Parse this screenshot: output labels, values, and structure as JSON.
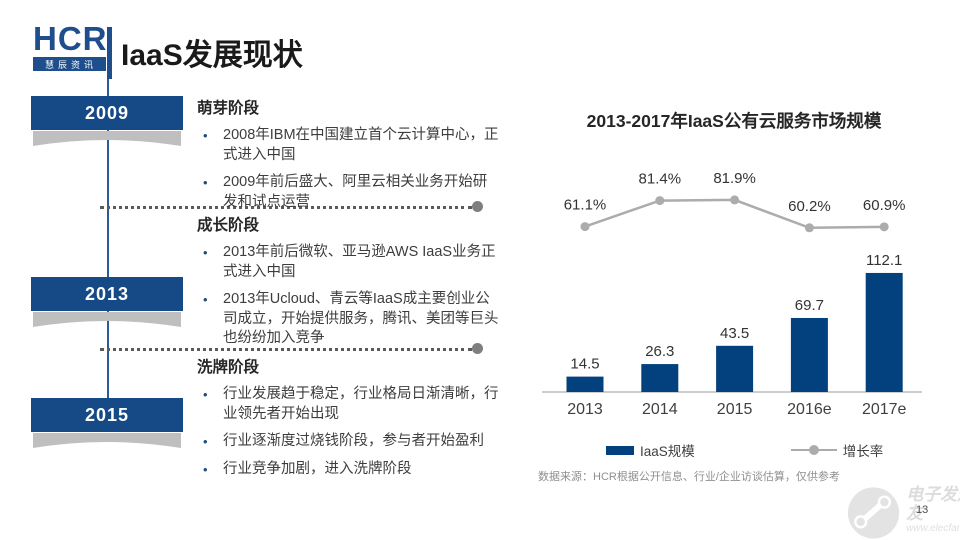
{
  "header": {
    "logo_text": "HCR",
    "logo_subtext": "慧辰资讯",
    "title": "IaaS发展现状"
  },
  "timeline": {
    "stages": [
      {
        "year": "2009",
        "title": "萌芽阶段",
        "bullets": [
          "2008年IBM在中国建立首个云计算中心，正式进入中国",
          "2009年前后盛大、阿里云相关业务开始研发和试点运营"
        ]
      },
      {
        "year": "2013",
        "title": "成长阶段",
        "bullets": [
          "2013年前后微软、亚马逊AWS IaaS业务正式进入中国",
          "2013年Ucloud、青云等IaaS成主要创业公司成立，开始提供服务，腾讯、美团等巨头也纷纷加入竞争"
        ]
      },
      {
        "year": "2015",
        "title": "洗牌阶段",
        "bullets": [
          "行业发展趋于稳定，行业格局日渐清晰，行业领先者开始出现",
          "行业逐渐度过烧钱阶段，参与者开始盈利",
          "行业竞争加剧，进入洗牌阶段"
        ]
      }
    ]
  },
  "chart": {
    "title": "2013-2017年IaaS公有云服务市场规模",
    "legend": [
      {
        "label": "IaaS规模",
        "kind": "bar"
      },
      {
        "label": "增长率",
        "kind": "line"
      }
    ],
    "source": "数据来源：HCR根据公开信息、行业/企业访谈估算，仅供参考"
  },
  "chart_data": {
    "type": "bar",
    "categories": [
      "2013",
      "2014",
      "2015",
      "2016e",
      "2017e"
    ],
    "series": [
      {
        "name": "IaaS规模",
        "kind": "bar",
        "values": [
          14.5,
          26.3,
          43.5,
          69.7,
          112.1
        ],
        "color": "#03417E"
      },
      {
        "name": "增长率",
        "kind": "line",
        "values": [
          61.1,
          81.4,
          81.9,
          60.2,
          60.9
        ],
        "labels": [
          "61.1%",
          "81.4%",
          "81.9%",
          "60.2%",
          "60.9%"
        ],
        "color": "#ACACAC"
      }
    ],
    "title": "2013-2017年IaaS公有云服务市场规模",
    "xlabel": "",
    "ylabel": "",
    "grid": false,
    "legend_position": "bottom",
    "data_labels": true
  },
  "colors": {
    "accent_blue": "#1F4E8C",
    "timeline_box_blue": "#164A87",
    "bar_blue": "#03417E",
    "line_gray": "#ACACAC",
    "dotted_gray": "#5a5a5a"
  },
  "footer": {
    "page_number": "13",
    "watermark_title": "电子发烧友",
    "watermark_url": "www.elecfans.com"
  }
}
